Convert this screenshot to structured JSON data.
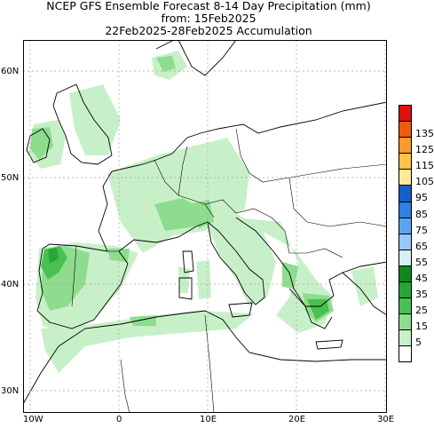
{
  "titles": {
    "line1": "NCEP GFS Ensemble Forecast 8-14 Day Precipitation (mm)",
    "line2": "from: 15Feb2025",
    "line3": "22Feb2025-28Feb2025 Accumulation"
  },
  "axes": {
    "lat_labels": [
      "60N",
      "50N",
      "40N",
      "30N"
    ],
    "lon_labels": [
      "10W",
      "0",
      "10E",
      "20E",
      "30E"
    ]
  },
  "legend": {
    "items": [
      {
        "label": "",
        "color": "#e01010"
      },
      {
        "label": "135",
        "color": "#ee5a10"
      },
      {
        "label": "125",
        "color": "#f89a2c"
      },
      {
        "label": "115",
        "color": "#fdc24a"
      },
      {
        "label": "105",
        "color": "#fde89c"
      },
      {
        "label": "95",
        "color": "#1460c8"
      },
      {
        "label": "85",
        "color": "#2c80e6"
      },
      {
        "label": "75",
        "color": "#5ca4f2"
      },
      {
        "label": "65",
        "color": "#96c8f8"
      },
      {
        "label": "55",
        "color": "#d4f2f0"
      },
      {
        "label": "45",
        "color": "#0e8a1c"
      },
      {
        "label": "35",
        "color": "#26a636"
      },
      {
        "label": "25",
        "color": "#4ac052"
      },
      {
        "label": "15",
        "color": "#8edc8e"
      },
      {
        "label": "5",
        "color": "#c8f0c8"
      },
      {
        "label": "",
        "color": "#ffffff"
      }
    ]
  },
  "colors": {
    "precip_light": "#c8f0c8",
    "precip_mid": "#8edc8e",
    "precip_dark": "#4ac052",
    "precip_darkest": "#26a636",
    "coast": "#000000",
    "grid": "#a0a0a0"
  }
}
